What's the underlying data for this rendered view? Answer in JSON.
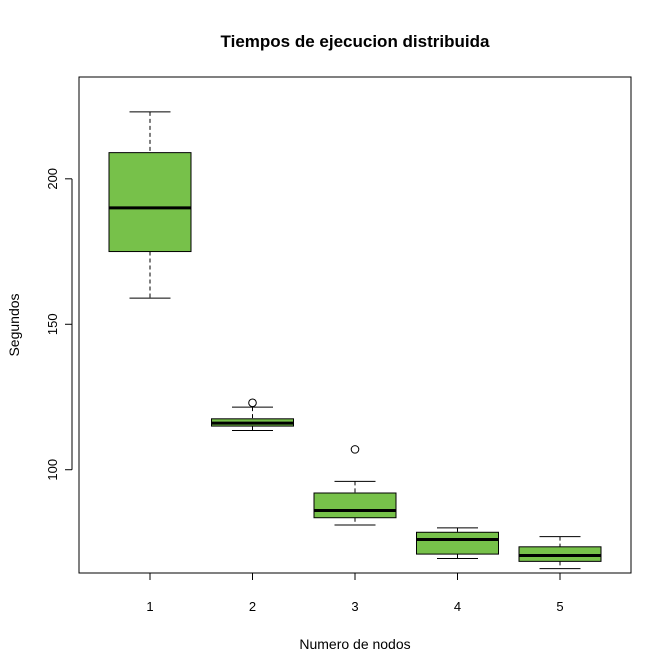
{
  "chart_data": {
    "type": "boxplot",
    "title": "Tiempos de ejecucion distribuida",
    "xlabel": "Numero de nodos",
    "ylabel": "Segundos",
    "categories": [
      "1",
      "2",
      "3",
      "4",
      "5"
    ],
    "ylim": [
      64.5,
      235
    ],
    "yticks": [
      100,
      150,
      200
    ],
    "box_color": "#77c14a",
    "boxes": [
      {
        "category": "1",
        "min": 159,
        "q1": 175,
        "median": 190,
        "q3": 209,
        "max": 223,
        "outliers": []
      },
      {
        "category": "2",
        "min": 113.5,
        "q1": 115,
        "median": 116,
        "q3": 117.5,
        "max": 121.5,
        "outliers": [
          123
        ]
      },
      {
        "category": "3",
        "min": 81,
        "q1": 83.5,
        "median": 86,
        "q3": 92,
        "max": 96,
        "outliers": [
          107
        ]
      },
      {
        "category": "4",
        "min": 69.5,
        "q1": 71,
        "median": 76,
        "q3": 78.5,
        "max": 80,
        "outliers": []
      },
      {
        "category": "5",
        "min": 66,
        "q1": 68.5,
        "median": 70.5,
        "q3": 73.5,
        "max": 77,
        "outliers": []
      }
    ]
  }
}
